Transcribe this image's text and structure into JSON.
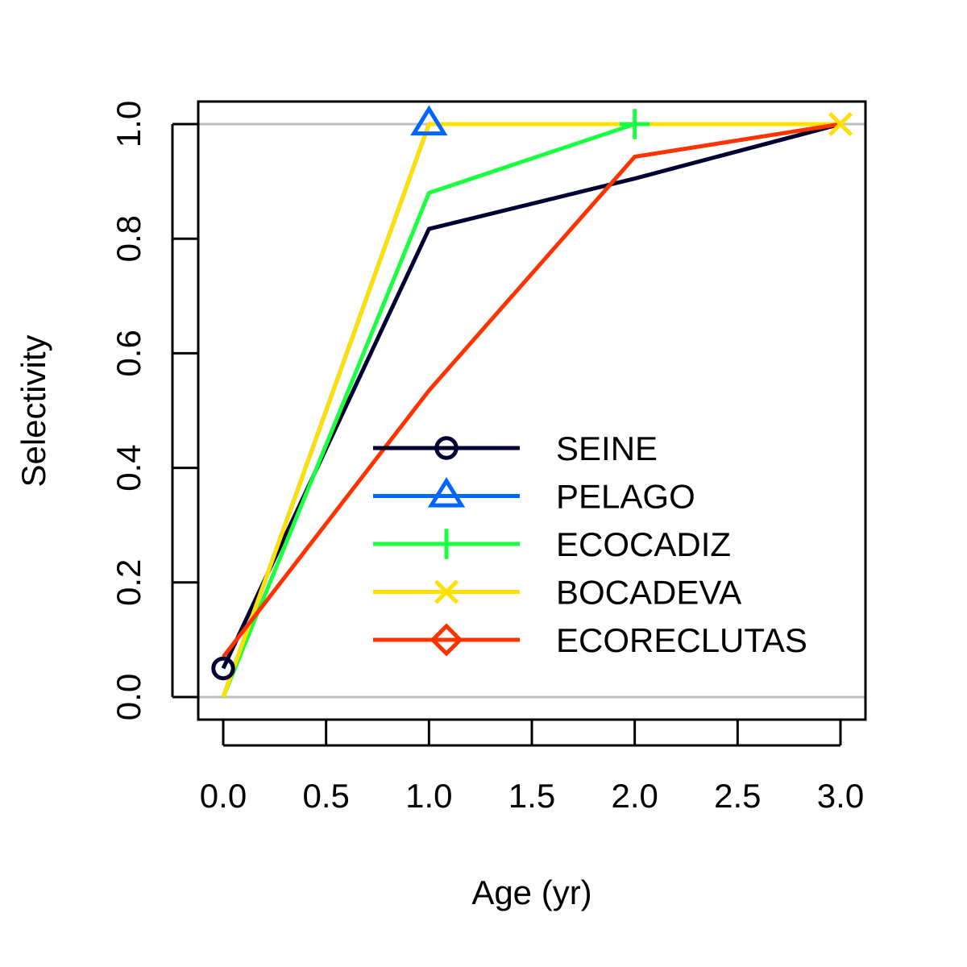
{
  "chart_data": {
    "type": "line",
    "xlabel": "Age (yr)",
    "ylabel": "Selectivity",
    "xlim": [
      0,
      3
    ],
    "ylim": [
      0,
      1
    ],
    "x_ticks": [
      "0.0",
      "0.5",
      "1.0",
      "1.5",
      "2.0",
      "2.5",
      "3.0"
    ],
    "y_ticks": [
      "0.0",
      "0.2",
      "0.4",
      "0.6",
      "0.8",
      "1.0"
    ],
    "reference_lines_y": [
      0,
      1
    ],
    "grid": false,
    "legend_position": "bottom-right",
    "series": [
      {
        "name": "SEINE",
        "color": "#000033",
        "marker": "circle",
        "x": [
          0,
          1,
          2,
          3
        ],
        "y": [
          0.05,
          0.817,
          0.905,
          1.0
        ],
        "marked_x": [
          0
        ]
      },
      {
        "name": "PELAGO",
        "color": "#0066ff",
        "marker": "triangle",
        "x": [
          0,
          1,
          2,
          3
        ],
        "y": [
          0.0,
          1.0,
          1.0,
          1.0
        ],
        "marked_x": [
          1
        ]
      },
      {
        "name": "ECOCADIZ",
        "color": "#1aff40",
        "marker": "plus",
        "x": [
          0,
          1,
          2,
          3
        ],
        "y": [
          0.0,
          0.88,
          1.0,
          1.0
        ],
        "marked_x": [
          2
        ]
      },
      {
        "name": "BOCADEVA",
        "color": "#ffe000",
        "marker": "cross",
        "x": [
          0,
          1,
          2,
          3
        ],
        "y": [
          0.0,
          1.0,
          1.0,
          1.0
        ],
        "marked_x": [
          3
        ]
      },
      {
        "name": "ECORECLUTAS",
        "color": "#ff3300",
        "marker": "diamond",
        "x": [
          0,
          1,
          2,
          3
        ],
        "y": [
          0.07,
          0.535,
          0.943,
          1.0
        ],
        "marked_x": []
      }
    ]
  }
}
